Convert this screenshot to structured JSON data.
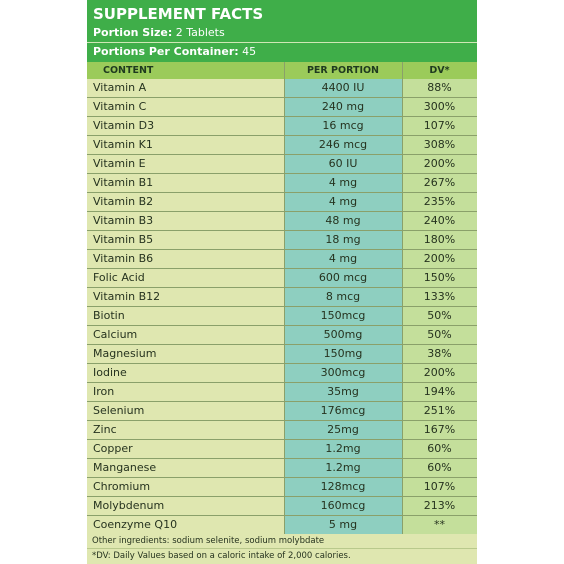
{
  "header": {
    "title": "SUPPLEMENT FACTS",
    "portion_size_label": "Portion Size:",
    "portion_size_value": " 2 Tablets",
    "portions_label": "Portions Per Container:",
    "portions_value": " 45"
  },
  "columns": [
    "CONTENT",
    "PER PORTION",
    "DV*"
  ],
  "rows": [
    {
      "name": "Vitamin A",
      "amount": "4400 IU",
      "dv": "88%"
    },
    {
      "name": "Vitamin C",
      "amount": "240 mg",
      "dv": "300%"
    },
    {
      "name": "Vitamin D3",
      "amount": "16 mcg",
      "dv": "107%"
    },
    {
      "name": "Vitamin K1",
      "amount": "246 mcg",
      "dv": "308%"
    },
    {
      "name": "Vitamin E",
      "amount": "60 IU",
      "dv": "200%"
    },
    {
      "name": "Vitamin B1",
      "amount": "4 mg",
      "dv": "267%"
    },
    {
      "name": "Vitamin B2",
      "amount": "4 mg",
      "dv": "235%"
    },
    {
      "name": "Vitamin B3",
      "amount": "48 mg",
      "dv": "240%"
    },
    {
      "name": "Vitamin B5",
      "amount": "18 mg",
      "dv": "180%"
    },
    {
      "name": "Vitamin B6",
      "amount": "4 mg",
      "dv": "200%"
    },
    {
      "name": "Folic Acid",
      "amount": "600 mcg",
      "dv": "150%"
    },
    {
      "name": "Vitamin B12",
      "amount": "8 mcg",
      "dv": "133%"
    },
    {
      "name": "Biotin",
      "amount": "150mcg",
      "dv": "50%"
    },
    {
      "name": "Calcium",
      "amount": "500mg",
      "dv": "50%"
    },
    {
      "name": "Magnesium",
      "amount": "150mg",
      "dv": "38%"
    },
    {
      "name": "Iodine",
      "amount": "300mcg",
      "dv": "200%"
    },
    {
      "name": "Iron",
      "amount": "35mg",
      "dv": "194%"
    },
    {
      "name": "Selenium",
      "amount": "176mcg",
      "dv": "251%"
    },
    {
      "name": "Zinc",
      "amount": "25mg",
      "dv": "167%"
    },
    {
      "name": "Copper",
      "amount": "1.2mg",
      "dv": "60%"
    },
    {
      "name": "Manganese",
      "amount": "1.2mg",
      "dv": "60%"
    },
    {
      "name": "Chromium",
      "amount": "128mcg",
      "dv": "107%"
    },
    {
      "name": "Molybdenum",
      "amount": "160mcg",
      "dv": "213%"
    },
    {
      "name": "Coenzyme Q10",
      "amount": "5 mg",
      "dv": "**"
    }
  ],
  "footer": {
    "ingredients": "Other ingredients: sodium selenite, sodium molybdate",
    "dv_note": "*DV: Daily Values based on a caloric intake of 2,000 calories."
  },
  "colors": {
    "header_green": "#3fae49",
    "column_header_green": "#9bcb5a",
    "row_bg": "#dfe7b0",
    "amount_col_bg": "#8ecfc0",
    "dv_col_bg": "#c4df9b"
  }
}
